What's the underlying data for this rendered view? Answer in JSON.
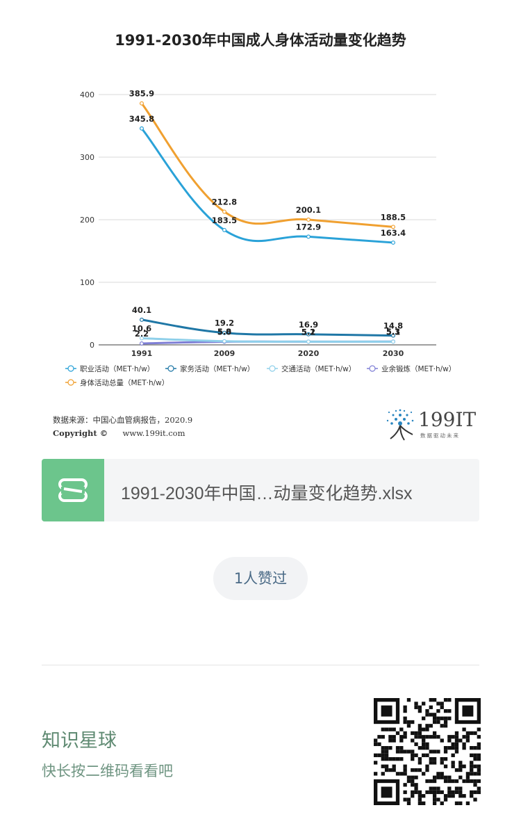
{
  "chart_data": {
    "type": "line",
    "title": "1991-2030年中国成人身体活动量变化趋势",
    "categories": [
      "1991",
      "2009",
      "2020",
      "2030"
    ],
    "ylim": [
      0,
      400
    ],
    "yticks": [
      "0",
      "100",
      "200",
      "300",
      "400"
    ],
    "grid": true,
    "legend_position": "bottom",
    "series": [
      {
        "name": "职业活动（MET·h/w）",
        "color": "#2aa2d8",
        "values": [
          345.8,
          183.5,
          172.9,
          163.4
        ],
        "labels": [
          "345.8",
          "183.5",
          "172.9",
          "163.4"
        ]
      },
      {
        "name": "家务活动（MET·h/w）",
        "color": "#1f77a6",
        "values": [
          40.1,
          19.2,
          16.9,
          14.8
        ],
        "labels": [
          "40.1",
          "19.2",
          "16.9",
          "14.8"
        ]
      },
      {
        "name": "交通活动（MET·h/w）",
        "color": "#8fd0ea",
        "values": [
          10.6,
          5.8,
          5.2,
          5.1
        ],
        "labels": [
          "10.6",
          "5.8",
          "5.2",
          "5.1"
        ]
      },
      {
        "name": "业余锻炼（MET·h/w）",
        "color": "#7f7fd6",
        "values": [
          2.2,
          5.0,
          5.1,
          5.3
        ],
        "labels": [
          "2.2",
          "5.0",
          "5.1",
          "5.3"
        ]
      },
      {
        "name": "身体活动总量（MET·h/w）",
        "color": "#f0a030",
        "values": [
          385.9,
          212.8,
          200.1,
          188.5
        ],
        "labels": [
          "385.9",
          "212.8",
          "200.1",
          "188.5"
        ]
      }
    ]
  },
  "source": {
    "line1": "数据来源：中国心血管病报告，2020.9",
    "line2_copyright": "Copyright ©",
    "line2_url": "www.199it.com"
  },
  "logo": {
    "text": "199IT",
    "sub": "数据驱动未来"
  },
  "file_card": {
    "file_name": "1991-2030年中国…动量变化趋势.xlsx",
    "icon": "spreadsheet-s-icon"
  },
  "like": {
    "label": "1人赞过"
  },
  "planet": {
    "title": "知识星球",
    "subtitle": "快长按二维码看看吧"
  },
  "qr": {
    "icon": "qr-code-icon"
  },
  "colors": {
    "file_icon_bg": "#6cc58c",
    "planet_text": "#5f8a72",
    "like_text": "#4a6a86"
  }
}
